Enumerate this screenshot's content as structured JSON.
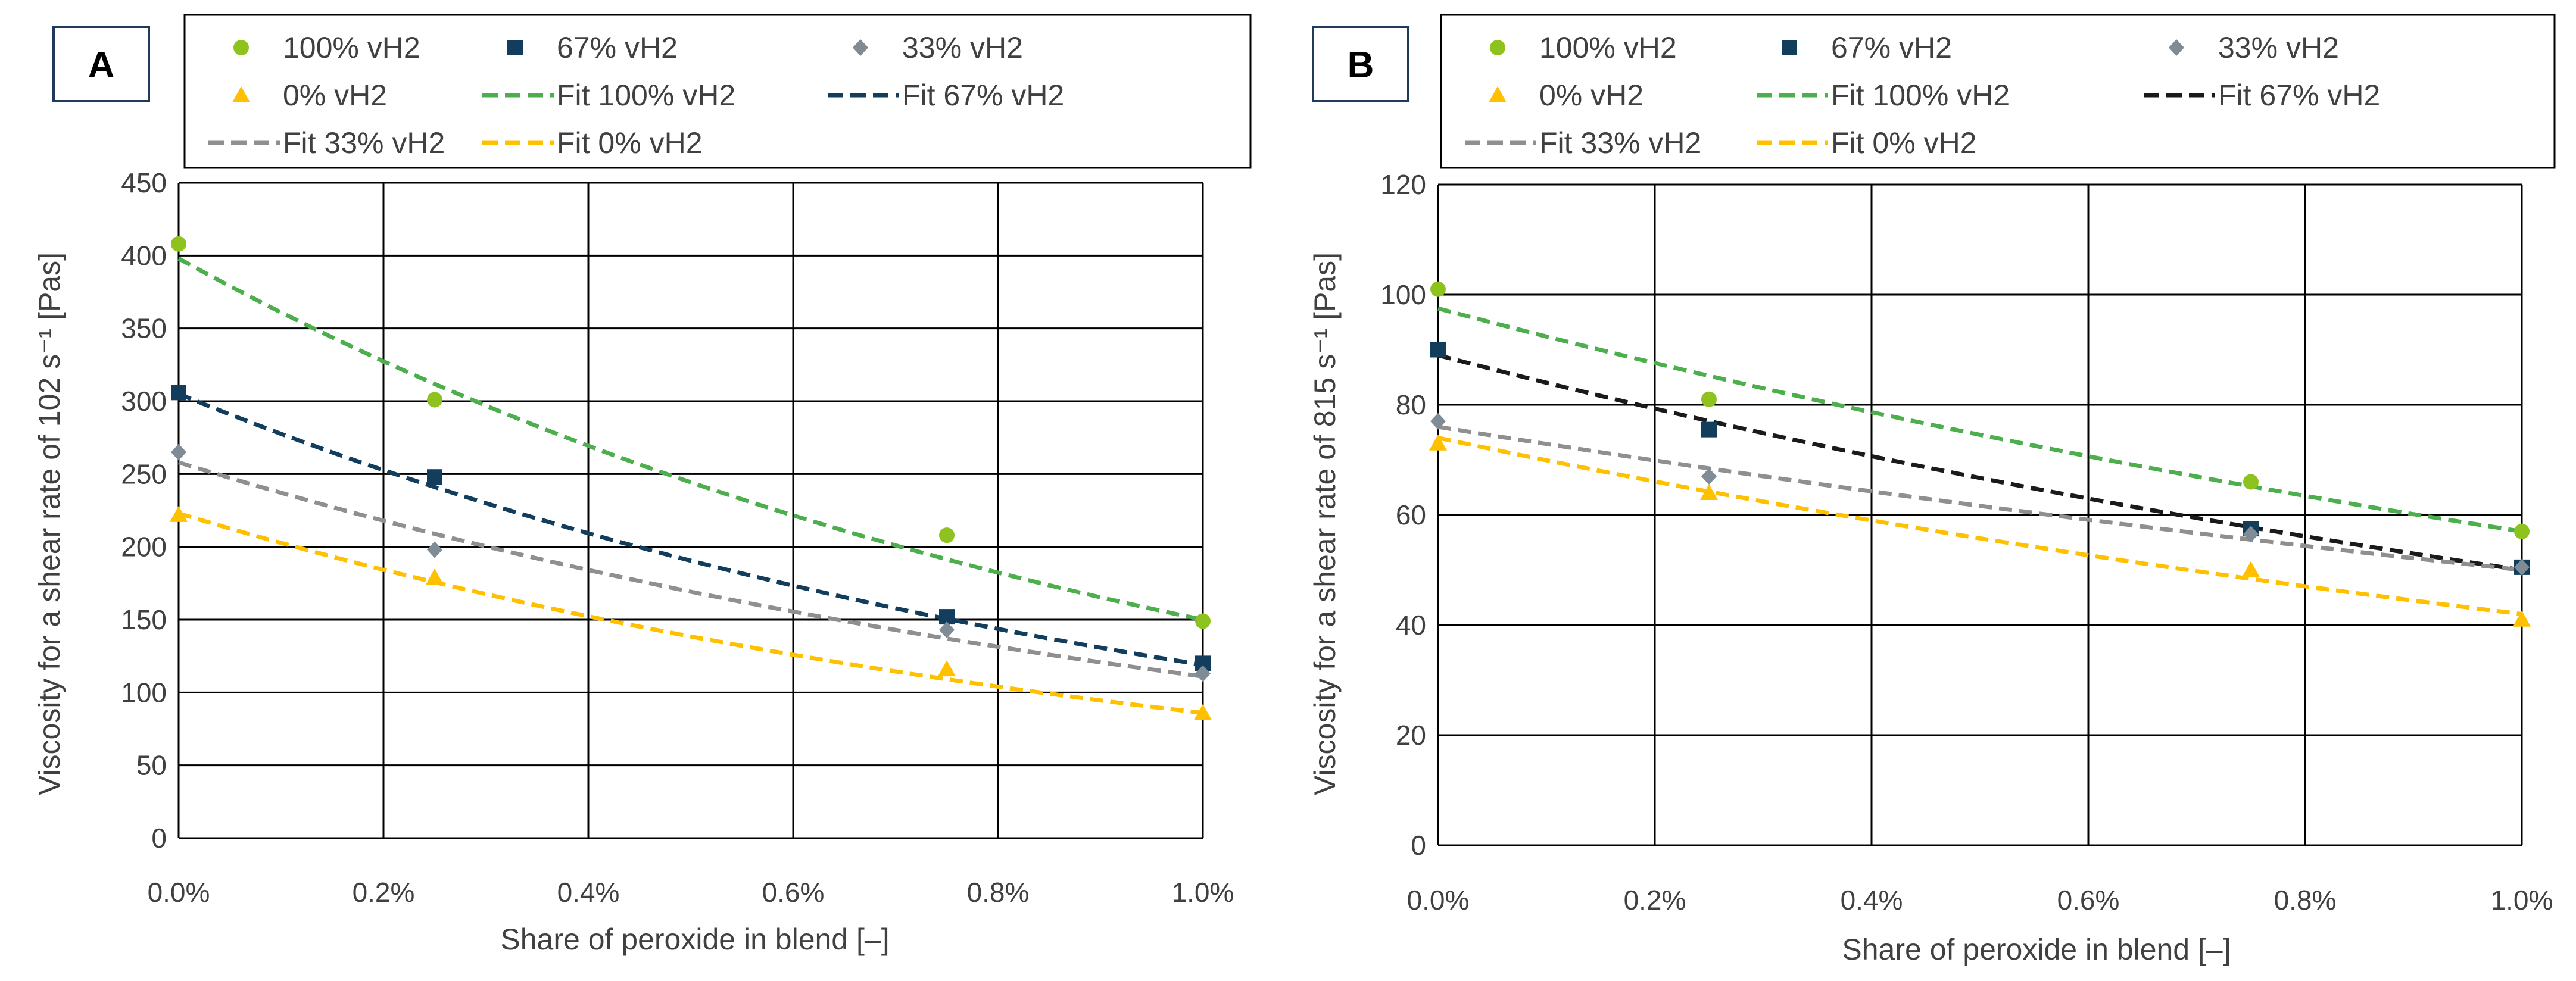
{
  "colors": {
    "s100": "#8dc21f",
    "s67": "#123d5c",
    "s33": "#7f8c96",
    "s0": "#ffc000",
    "fit100": "#4cae4c",
    "fit67": "#123d5c",
    "fit67_b": "#1a1a1a",
    "fit33": "#8f8f8f",
    "fit0": "#ffc000"
  },
  "chart_data": [
    {
      "type": "scatter",
      "panel": "A",
      "xlabel": "Share of peroxide in blend   [–]",
      "ylabel": "Viscosity for a shear rate of 102 s⁻¹   [Pas]",
      "x_tick_labels": [
        "0.0%",
        "0.2%",
        "0.4%",
        "0.6%",
        "0.8%",
        "1.0%"
      ],
      "y_tick_labels": [
        "0",
        "50",
        "100",
        "150",
        "200",
        "250",
        "300",
        "350",
        "400",
        "450"
      ],
      "xlim": [
        0,
        1.0
      ],
      "ylim": [
        0,
        450
      ],
      "x": [
        0,
        0.25,
        0.75,
        1.0
      ],
      "series": [
        {
          "name": "100% vH2",
          "marker": "circle",
          "values": [
            408,
            301,
            208,
            149
          ]
        },
        {
          "name": "67% vH2",
          "marker": "square",
          "values": [
            306,
            248,
            152,
            120
          ]
        },
        {
          "name": "33% vH2",
          "marker": "diamond",
          "values": [
            265,
            198,
            143,
            113
          ]
        },
        {
          "name": "0% vH2",
          "marker": "triangle",
          "values": [
            222,
            179,
            116,
            86
          ]
        }
      ],
      "fits": [
        {
          "name": "Fit 100% vH2",
          "start": 398,
          "end": 150
        },
        {
          "name": "Fit 67% vH2",
          "start": 305,
          "end": 119
        },
        {
          "name": "Fit 33% vH2",
          "start": 258,
          "end": 111
        },
        {
          "name": "Fit 0% vH2",
          "start": 223,
          "end": 86
        }
      ],
      "legend": [
        "100% vH2",
        "67% vH2",
        "33% vH2",
        "0% vH2",
        "Fit 100% vH2",
        "Fit 67% vH2",
        "Fit 33% vH2",
        "Fit 0% vH2"
      ],
      "grid": true,
      "legend_position": "top"
    },
    {
      "type": "scatter",
      "panel": "B",
      "xlabel": "Share of peroxide in blend   [–]",
      "ylabel": "Viscosity for a shear rate of 815 s⁻¹   [Pas]",
      "x_tick_labels": [
        "0.0%",
        "0.2%",
        "0.4%",
        "0.6%",
        "0.8%",
        "1.0%"
      ],
      "y_tick_labels": [
        "0",
        "20",
        "40",
        "60",
        "80",
        "100",
        "120"
      ],
      "xlim": [
        0,
        1.0
      ],
      "ylim": [
        0,
        120
      ],
      "x": [
        0,
        0.25,
        0.75,
        1.0
      ],
      "series": [
        {
          "name": "100% vH2",
          "marker": "circle",
          "values": [
            101,
            81,
            66,
            57
          ]
        },
        {
          "name": "67% vH2",
          "marker": "square",
          "values": [
            90,
            75.5,
            57.5,
            50.5
          ]
        },
        {
          "name": "33% vH2",
          "marker": "diamond",
          "values": [
            77,
            67,
            56.5,
            50.5
          ]
        },
        {
          "name": "0% vH2",
          "marker": "triangle",
          "values": [
            73,
            64,
            50,
            41
          ]
        }
      ],
      "fits": [
        {
          "name": "Fit 100% vH2",
          "start": 97.5,
          "end": 57
        },
        {
          "name": "Fit 67% vH2",
          "start": 89,
          "end": 50
        },
        {
          "name": "Fit 33% vH2",
          "start": 76,
          "end": 50
        },
        {
          "name": "Fit 0% vH2",
          "start": 74,
          "end": 42
        }
      ],
      "legend": [
        "100% vH2",
        "67% vH2",
        "33% vH2",
        "0% vH2",
        "Fit 100% vH2",
        "Fit 67% vH2",
        "Fit 33% vH2",
        "Fit 0% vH2"
      ],
      "grid": true,
      "legend_position": "top"
    }
  ]
}
